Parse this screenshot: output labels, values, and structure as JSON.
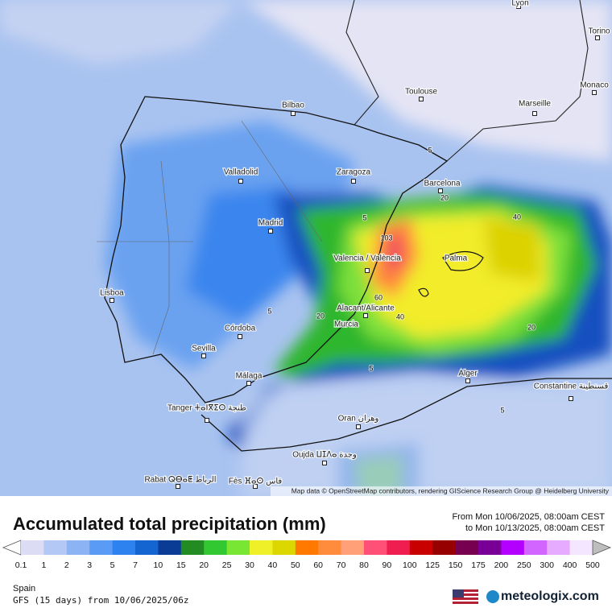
{
  "map": {
    "cities": [
      "Lyon",
      "Torino",
      "Monaco",
      "Toulouse",
      "Marseille",
      "Bilbao",
      "Valladolid",
      "Zaragoza",
      "Barcelona",
      "Madrid",
      "Valencia / València",
      "Palma",
      "Lisboa",
      "Córdoba",
      "Sevilla",
      "Alacant/Alicante",
      "Murcia",
      "Málaga",
      "Alger",
      "Constantine قسنطينة",
      "Tanger ⵜⴰⵏⴳⵉⵔ طنجة",
      "Oran وهران",
      "Oujda ⵡⵊⴷⴰ وجدة",
      "Rabat ⵕⴱⴰⵟ الرباط",
      "Fès ⴼⴰⵙ فاس"
    ],
    "contour_labels": [
      "103",
      "60",
      "40",
      "40",
      "20",
      "20",
      "20",
      "5",
      "5",
      "5",
      "5",
      "5"
    ],
    "attribution": "Map data © OpenStreetMap contributors, rendering GIScience Research Group @ Heidelberg University"
  },
  "legend": {
    "title": "Accumulated total precipitation (mm)",
    "period_from": "From Mon 10/06/2025, 08:00am CEST",
    "period_to": "to Mon 10/13/2025, 08:00am CEST",
    "levels": [
      0.1,
      1,
      2,
      3,
      5,
      7,
      10,
      15,
      20,
      25,
      30,
      40,
      50,
      60,
      70,
      80,
      90,
      100,
      125,
      150,
      175,
      200,
      250,
      300,
      400,
      500
    ],
    "colors": [
      "#ffffff",
      "#dcdcf5",
      "#b4c8f5",
      "#8cb4f5",
      "#5a9bf5",
      "#2d82f0",
      "#1464d2",
      "#0a3c96",
      "#228b22",
      "#32c832",
      "#78e632",
      "#f0f028",
      "#dcd700",
      "#ff7800",
      "#ff8c3c",
      "#ffa078",
      "#ff5078",
      "#f01e50",
      "#c80000",
      "#960000",
      "#780050",
      "#780096",
      "#b400ff",
      "#d264ff",
      "#e6aaff",
      "#f5e6ff",
      "#bebebe"
    ]
  },
  "footer": {
    "region": "Spain",
    "model": "GFS (15 days) from 10/06/2025/06z",
    "brand": "meteologix.com"
  }
}
